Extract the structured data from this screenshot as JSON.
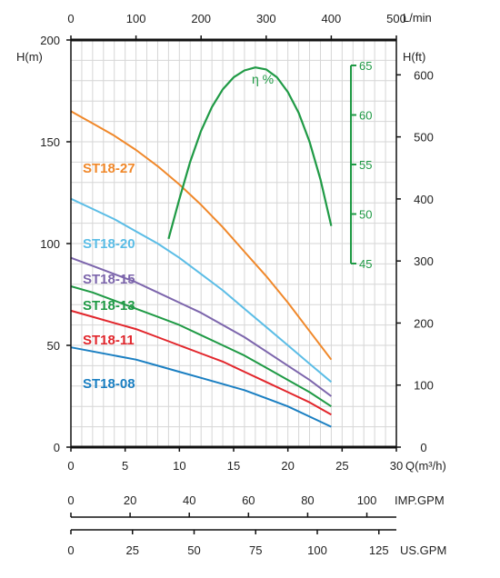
{
  "chart_data": {
    "type": "line",
    "title": "",
    "x": [
      0,
      2,
      4,
      6,
      8,
      10,
      12,
      14,
      16,
      18,
      20,
      22,
      24
    ],
    "xlim": [
      0,
      30
    ],
    "ylim": [
      0,
      200
    ],
    "grid": true,
    "series": [
      {
        "name": "ST18-27",
        "color": "#f0882a",
        "values": [
          165,
          159,
          153,
          146,
          138,
          129,
          119,
          108,
          96,
          84,
          71,
          57,
          43
        ]
      },
      {
        "name": "ST18-20",
        "color": "#5bbde6",
        "values": [
          122,
          117,
          112,
          106,
          100,
          93,
          85,
          77,
          68,
          59,
          50,
          41,
          32
        ]
      },
      {
        "name": "ST18-15",
        "color": "#7c65ac",
        "values": [
          93,
          89,
          85,
          81,
          76,
          71,
          66,
          60,
          54,
          47,
          40,
          33,
          25
        ]
      },
      {
        "name": "ST18-13",
        "color": "#1f9a45",
        "values": [
          79,
          76,
          72,
          68,
          64,
          60,
          55,
          50,
          45,
          39,
          33,
          27,
          20
        ]
      },
      {
        "name": "ST18-11",
        "color": "#e2262c",
        "values": [
          67,
          64,
          61,
          58,
          54,
          50,
          46,
          42,
          37,
          32,
          27,
          22,
          16
        ]
      },
      {
        "name": "ST18-08",
        "color": "#1a7fc2",
        "values": [
          49,
          47,
          45,
          43,
          40,
          37,
          34,
          31,
          28,
          24,
          20,
          15,
          10
        ]
      }
    ],
    "efficiency": {
      "label": "η %",
      "color": "#1f9a45",
      "ylim": [
        45,
        65
      ],
      "ticks": [
        45,
        50,
        55,
        60,
        65
      ],
      "x": [
        9,
        10,
        11,
        12,
        13,
        14,
        15,
        16,
        17,
        18,
        19,
        20,
        21,
        22,
        23,
        24
      ],
      "values": [
        47.5,
        51.5,
        55.3,
        58.4,
        60.8,
        62.6,
        63.8,
        64.5,
        64.8,
        64.6,
        63.8,
        62.3,
        60.2,
        57.3,
        53.5,
        48.8
      ]
    },
    "axes": {
      "bottom": {
        "ticks": [
          "0",
          "5",
          "10",
          "15",
          "20",
          "25",
          "30"
        ],
        "unit": "Q(m³/h)"
      },
      "top": {
        "ticks": [
          "0",
          "100",
          "200",
          "300",
          "400",
          "500"
        ],
        "unit": "L/min"
      },
      "left": {
        "ticks": [
          "0",
          "50",
          "100",
          "150",
          "200"
        ],
        "unit": "H(m)"
      },
      "right": {
        "ticks": [
          "0",
          "100",
          "200",
          "300",
          "400",
          "500",
          "600"
        ],
        "unit": "H(ft)"
      },
      "imp": {
        "ticks": [
          "0",
          "20",
          "40",
          "60",
          "80",
          "100"
        ],
        "unit": "IMP.GPM"
      },
      "us": {
        "ticks": [
          "0",
          "25",
          "50",
          "75",
          "100",
          "125"
        ],
        "unit": "US.GPM"
      }
    }
  }
}
